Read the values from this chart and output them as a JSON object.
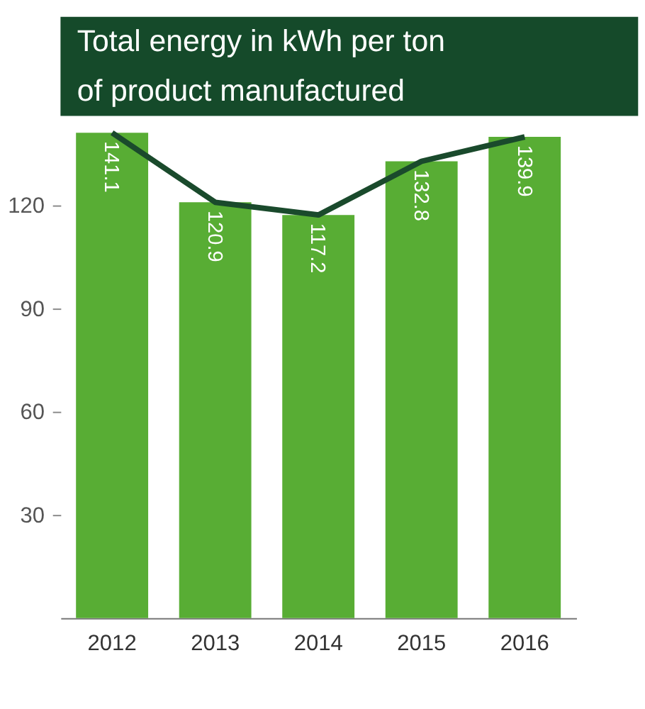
{
  "chart_data": {
    "type": "bar",
    "title": "Total energy in kWh per ton\nof product manufactured",
    "categories": [
      "2012",
      "2013",
      "2014",
      "2015",
      "2016"
    ],
    "series": [
      {
        "color": "#58ad34",
        "values": [
          141.1,
          120.9,
          117.2,
          132.8,
          139.9
        ],
        "value_labels": [
          "141.1",
          "120.9",
          "117.2",
          "132.8",
          "139.9"
        ]
      },
      {
        "type": "line",
        "color": "#1a4a2c",
        "values": [
          141.1,
          120.9,
          117.2,
          132.8,
          139.9
        ]
      }
    ],
    "ylim": [
      0,
      142
    ],
    "yticks": [
      30,
      60,
      90,
      120
    ],
    "grid": false,
    "legend": false,
    "marker": "none"
  }
}
